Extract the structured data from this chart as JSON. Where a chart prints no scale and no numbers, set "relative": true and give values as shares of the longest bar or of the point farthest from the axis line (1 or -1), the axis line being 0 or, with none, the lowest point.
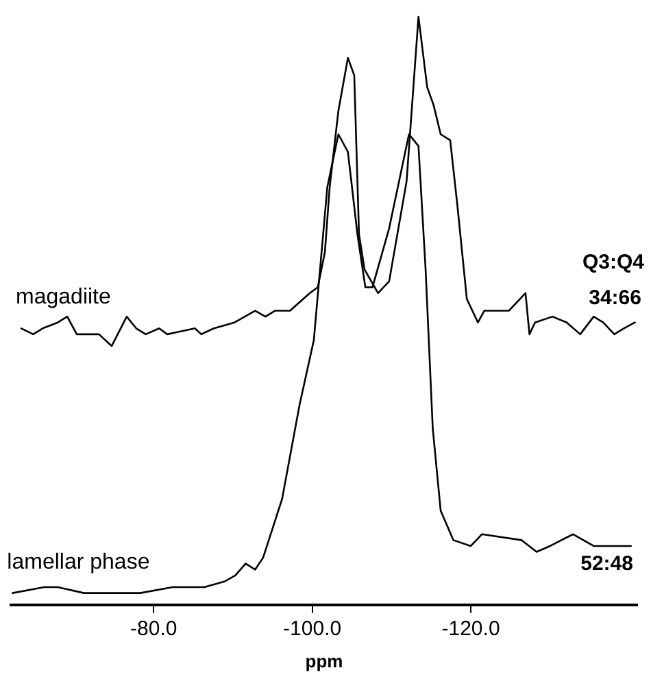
{
  "chart_data": {
    "type": "line",
    "relative": true,
    "xlabel": "ppm",
    "xlim": [
      -62,
      -141
    ],
    "xticks": [
      {
        "value": -80,
        "label": "-80.0"
      },
      {
        "value": -100,
        "label": "-100.0"
      },
      {
        "value": -120,
        "label": "-120.0"
      }
    ],
    "grid": false,
    "legend": false,
    "marker": "none",
    "line_style": "solid",
    "tick_labels": "x",
    "annotations": [
      "Q3:Q4",
      "34:66",
      "52:48"
    ],
    "series": [
      {
        "name": "magadiite",
        "color": "#000000",
        "x": [
          -63.3,
          -64.8,
          -66.0,
          -67.9,
          -69.1,
          -70.3,
          -73.1,
          -74.7,
          -76.6,
          -77.8,
          -79.0,
          -80.7,
          -81.7,
          -85.2,
          -86.0,
          -87.6,
          -90.2,
          -92.8,
          -94.1,
          -95.3,
          -97.2,
          -99.7,
          -100.7,
          -101.6,
          -102.2,
          -103.3,
          -104.5,
          -105.3,
          -105.9,
          -106.6,
          -108.3,
          -109.7,
          -111.9,
          -113.4,
          -114.5,
          -115.3,
          -116.2,
          -117.4,
          -118.3,
          -119.5,
          -120.9,
          -121.7,
          -122.9,
          -124.0,
          -124.8,
          -126.9,
          -127.4,
          -128.1,
          -130.3,
          -132.1,
          -133.8,
          -135.5,
          -136.7,
          -138.1,
          -139.3,
          -140.7
        ],
        "values": [
          0.47,
          0.46,
          0.47,
          0.48,
          0.49,
          0.46,
          0.46,
          0.44,
          0.49,
          0.47,
          0.46,
          0.47,
          0.46,
          0.47,
          0.46,
          0.47,
          0.48,
          0.5,
          0.49,
          0.5,
          0.5,
          0.53,
          0.54,
          0.6,
          0.71,
          0.84,
          0.93,
          0.9,
          0.63,
          0.57,
          0.53,
          0.55,
          0.72,
          1.0,
          0.88,
          0.85,
          0.8,
          0.79,
          0.68,
          0.52,
          0.48,
          0.5,
          0.5,
          0.5,
          0.5,
          0.53,
          0.46,
          0.48,
          0.49,
          0.48,
          0.46,
          0.49,
          0.48,
          0.46,
          0.47,
          0.48
        ]
      },
      {
        "name": "lamellar phase",
        "color": "#000000",
        "x": [
          -62.2,
          -66.2,
          -67.9,
          -71.2,
          -72.6,
          -74.8,
          -78.3,
          -82.4,
          -86.4,
          -89.0,
          -90.3,
          -91.6,
          -92.8,
          -93.8,
          -96.2,
          -98.4,
          -100.2,
          -101.9,
          -103.3,
          -104.5,
          -105.7,
          -106.7,
          -107.6,
          -109.7,
          -112.2,
          -113.4,
          -114.3,
          -115.2,
          -116.2,
          -117.8,
          -120.0,
          -121.4,
          -126.4,
          -128.3,
          -130.0,
          -132.9,
          -135.5,
          -138.4,
          -140.2
        ],
        "values": [
          0.02,
          0.03,
          0.03,
          0.02,
          0.02,
          0.02,
          0.02,
          0.03,
          0.03,
          0.04,
          0.05,
          0.07,
          0.06,
          0.08,
          0.18,
          0.34,
          0.45,
          0.71,
          0.8,
          0.77,
          0.63,
          0.54,
          0.54,
          0.64,
          0.8,
          0.78,
          0.57,
          0.3,
          0.16,
          0.11,
          0.1,
          0.12,
          0.11,
          0.09,
          0.1,
          0.12,
          0.1,
          0.1,
          0.1
        ]
      }
    ]
  }
}
